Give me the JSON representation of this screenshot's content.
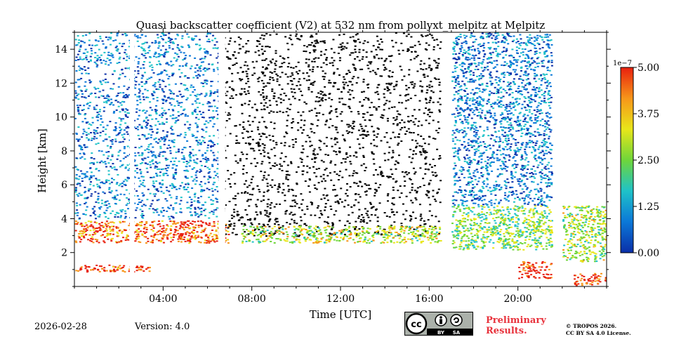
{
  "chart_data": {
    "type": "heatmap",
    "title": "Quasi backscatter coefficient (V2) at 532 nm from pollyxt_melpitz at Melpitz",
    "xlabel": "Time [UTC]",
    "ylabel": "Height [km]",
    "xlim": [
      0,
      24
    ],
    "ylim": [
      0,
      15
    ],
    "x_ticks": [
      {
        "value": 4,
        "label": "04:00"
      },
      {
        "value": 8,
        "label": "08:00"
      },
      {
        "value": 12,
        "label": "12:00"
      },
      {
        "value": 16,
        "label": "16:00"
      },
      {
        "value": 20,
        "label": "20:00"
      }
    ],
    "y_ticks": [
      {
        "value": 2,
        "label": "2"
      },
      {
        "value": 4,
        "label": "4"
      },
      {
        "value": 6,
        "label": "6"
      },
      {
        "value": 8,
        "label": "8"
      },
      {
        "value": 10,
        "label": "10"
      },
      {
        "value": 12,
        "label": "12"
      },
      {
        "value": 14,
        "label": "14"
      }
    ],
    "colorbar": {
      "min": 0,
      "max": 5,
      "scale_label": "1e−7",
      "ticks": [
        {
          "value": 0,
          "label": "0.00"
        },
        {
          "value": 1.25,
          "label": "1.25"
        },
        {
          "value": 2.5,
          "label": "2.50"
        },
        {
          "value": 3.75,
          "label": "3.75"
        },
        {
          "value": 5,
          "label": "5.00"
        }
      ],
      "colors": [
        "#0a2fa8",
        "#0b78d8",
        "#1fc2c8",
        "#6fd63a",
        "#e8e61a",
        "#f7961a",
        "#e8200e"
      ]
    },
    "features": [
      {
        "name": "aerosol layer (high values)",
        "time_start": 0,
        "time_end": 7,
        "height_bottom": 2.6,
        "height_top": 3.9,
        "value": 4.5
      },
      {
        "name": "near-ground high values",
        "time_start": 0,
        "time_end": 3.5,
        "height_bottom": 0.9,
        "height_top": 1.3,
        "value": 4.8
      },
      {
        "name": "background noise",
        "time_start": 0,
        "time_end": 6.5,
        "height_bottom": 4,
        "height_top": 15,
        "value": 0.9
      },
      {
        "name": "daytime noise (low SNR)",
        "time_start": 6.5,
        "time_end": 16.5,
        "height_bottom": 3,
        "height_top": 15,
        "value": 0.3
      },
      {
        "name": "boundary layer",
        "time_start": 7.5,
        "time_end": 16.5,
        "height_bottom": 2.6,
        "height_top": 3.6,
        "value": 3.0
      },
      {
        "name": "boundary layer (evening)",
        "time_start": 17,
        "time_end": 21.5,
        "height_bottom": 2.2,
        "height_top": 4.8,
        "value": 2.5
      },
      {
        "name": "cloud near ground",
        "time_start": 20,
        "time_end": 21.5,
        "height_bottom": 0.5,
        "height_top": 1.5,
        "value": 5.0
      },
      {
        "name": "cloud near ground",
        "time_start": 22.5,
        "time_end": 24,
        "height_bottom": 0.1,
        "height_top": 0.8,
        "value": 5.0
      },
      {
        "name": "lower layer (late)",
        "time_start": 22,
        "time_end": 24,
        "height_bottom": 1.5,
        "height_top": 4.8,
        "value": 2.8
      },
      {
        "name": "background noise (evening)",
        "time_start": 17,
        "time_end": 21.5,
        "height_bottom": 4.8,
        "height_top": 15,
        "value": 0.9
      }
    ],
    "data_gaps": [
      {
        "time_start": 2.5,
        "time_end": 2.7
      },
      {
        "time_start": 6.5,
        "time_end": 6.8
      },
      {
        "time_start": 16.6,
        "time_end": 16.9
      },
      {
        "time_start": 21.6,
        "time_end": 21.8
      }
    ]
  },
  "footer": {
    "date": "2026-02-28",
    "version": "Version: 4.0",
    "preliminary_line1": "Preliminary",
    "preliminary_line2": "Results.",
    "copyright_line1": "© TROPOS 2026.",
    "copyright_line2": "CC BY SA 4.0 License.",
    "license_badge_text": [
      "cc",
      "BY",
      "SA"
    ]
  }
}
